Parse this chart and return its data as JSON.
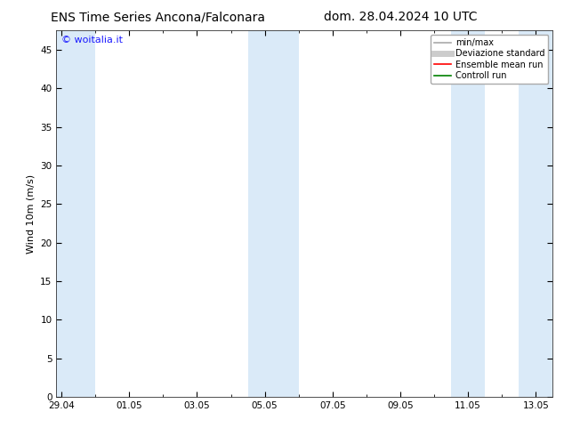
{
  "title_left": "ENS Time Series Ancona/Falconara",
  "title_right": "dom. 28.04.2024 10 UTC",
  "ylabel": "Wind 10m (m/s)",
  "watermark": "© woitalia.it",
  "watermark_color": "#1a1aff",
  "ylim": [
    0,
    47.5
  ],
  "yticks": [
    0,
    5,
    10,
    15,
    20,
    25,
    30,
    35,
    40,
    45
  ],
  "xtick_labels": [
    "29.04",
    "01.05",
    "03.05",
    "05.05",
    "07.05",
    "09.05",
    "11.05",
    "13.05"
  ],
  "xtick_positions": [
    0,
    2,
    4,
    6,
    8,
    10,
    12,
    14
  ],
  "xlim": [
    -0.15,
    14.5
  ],
  "bg_color": "#ffffff",
  "plot_bg_color": "#ffffff",
  "shade_color": "#daeaf8",
  "shade_bands": [
    [
      -0.15,
      1.0
    ],
    [
      5.5,
      7.0
    ],
    [
      11.5,
      12.5
    ],
    [
      13.5,
      14.5
    ]
  ],
  "legend_entries": [
    {
      "label": "min/max",
      "color": "#aaaaaa",
      "lw": 1.2,
      "ls": "-",
      "type": "line"
    },
    {
      "label": "Deviazione standard",
      "color": "#cccccc",
      "lw": 5,
      "ls": "-",
      "type": "line"
    },
    {
      "label": "Ensemble mean run",
      "color": "#ff0000",
      "lw": 1.2,
      "ls": "-",
      "type": "line"
    },
    {
      "label": "Controll run",
      "color": "#008000",
      "lw": 1.2,
      "ls": "-",
      "type": "line"
    }
  ],
  "title_fontsize": 10,
  "axis_fontsize": 8,
  "tick_fontsize": 7.5,
  "watermark_fontsize": 8,
  "legend_fontsize": 7
}
